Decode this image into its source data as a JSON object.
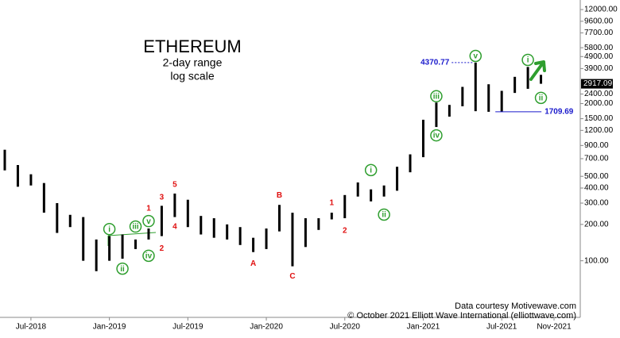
{
  "chart_data": {
    "type": "range-bar",
    "title": "ETHEREUM",
    "subtitle": "2-day range",
    "scale_note": "log scale",
    "log_scale": true,
    "color": "#000000",
    "x": [
      "May-2018",
      "Jun-2018",
      "Jul-2018",
      "Aug-2018",
      "Sep-2018",
      "Oct-2018",
      "Nov-2018",
      "Dec-2018",
      "Jan-2019",
      "Feb-2019",
      "Mar-2019",
      "Apr-2019",
      "May-2019",
      "Jun-2019",
      "Jul-2019",
      "Aug-2019",
      "Sep-2019",
      "Oct-2019",
      "Nov-2019",
      "Dec-2019",
      "Jan-2020",
      "Feb-2020",
      "Mar-2020",
      "Apr-2020",
      "May-2020",
      "Jun-2020",
      "Jul-2020",
      "Aug-2020",
      "Sep-2020",
      "Oct-2020",
      "Nov-2020",
      "Dec-2020",
      "Jan-2021",
      "Feb-2021",
      "Mar-2021",
      "Apr-2021",
      "May-2021",
      "Jun-2021",
      "Jul-2021",
      "Aug-2021",
      "Sep-2021",
      "Oct-2021"
    ],
    "high": [
      830,
      620,
      520,
      440,
      300,
      240,
      230,
      150,
      160,
      165,
      150,
      185,
      285,
      360,
      320,
      235,
      225,
      200,
      190,
      155,
      185,
      290,
      250,
      225,
      225,
      250,
      350,
      445,
      390,
      420,
      600,
      760,
      1470,
      2040,
      1950,
      2750,
      4370.77,
      2890,
      2550,
      3330,
      4020,
      3460
    ],
    "low": [
      560,
      410,
      420,
      250,
      170,
      190,
      100,
      82,
      100,
      104,
      125,
      150,
      160,
      230,
      190,
      165,
      155,
      150,
      135,
      118,
      125,
      175,
      90,
      130,
      180,
      220,
      225,
      340,
      310,
      340,
      380,
      540,
      720,
      1280,
      1560,
      1900,
      1730,
      1710,
      1709.69,
      2450,
      2650,
      2917.09
    ],
    "ylim": [
      34,
      14400
    ],
    "yticks": [
      {
        "value": 100,
        "label": "100.00"
      },
      {
        "value": 200,
        "label": "200.00"
      },
      {
        "value": 300,
        "label": "300.00"
      },
      {
        "value": 400,
        "label": "400.00"
      },
      {
        "value": 500,
        "label": "500.00"
      },
      {
        "value": 700,
        "label": "700.00"
      },
      {
        "value": 900,
        "label": "900.00"
      },
      {
        "value": 1200,
        "label": "1200.00"
      },
      {
        "value": 1500,
        "label": "1500.00"
      },
      {
        "value": 2000,
        "label": "2000.00"
      },
      {
        "value": 2400,
        "label": "2400.00"
      },
      {
        "value": 3900,
        "label": "3900.00"
      },
      {
        "value": 4900,
        "label": "4900.00"
      },
      {
        "value": 5800,
        "label": "5800.00"
      },
      {
        "value": 7700,
        "label": "7700.00"
      },
      {
        "value": 9600,
        "label": "9600.00"
      },
      {
        "value": 12000,
        "label": "12000.00"
      }
    ],
    "xticks": [
      "Jul-2018",
      "Jan-2019",
      "Jul-2019",
      "Jan-2020",
      "Jul-2020",
      "Jan-2021",
      "Jul-2021",
      "Nov-2021"
    ],
    "last_price": 2917.09,
    "price_labels": [
      {
        "x": "May-2021",
        "value": 4370.77,
        "color": "#1a1acc"
      },
      {
        "x": "Jul-2021",
        "value": 1709.69,
        "color": "#1a1acc"
      }
    ],
    "annotations": [
      {
        "text": "i",
        "x": "Jan-2019",
        "y": 183,
        "color": "#2e9e2e",
        "circled": true
      },
      {
        "text": "ii",
        "x": "Feb-2019",
        "y": 86,
        "color": "#2e9e2e",
        "circled": true
      },
      {
        "text": "iii",
        "x": "Mar-2019",
        "y": 192,
        "color": "#2e9e2e",
        "circled": true
      },
      {
        "text": "iv",
        "x": "Apr-2019",
        "y": 110,
        "color": "#2e9e2e",
        "circled": true
      },
      {
        "text": "v",
        "x": "Apr-2019",
        "y": 213,
        "color": "#2e9e2e",
        "circled": true
      },
      {
        "text": "1",
        "x": "Apr-2019",
        "y": 272,
        "color": "#e01010",
        "circled": false
      },
      {
        "text": "2",
        "x": "May-2019",
        "y": 127,
        "color": "#e01010",
        "circled": false
      },
      {
        "text": "3",
        "x": "May-2019",
        "y": 336,
        "color": "#e01010",
        "circled": false
      },
      {
        "text": "4",
        "x": "Jun-2019",
        "y": 192,
        "color": "#e01010",
        "circled": false
      },
      {
        "text": "5",
        "x": "Jun-2019",
        "y": 428,
        "color": "#e01010",
        "circled": false
      },
      {
        "text": "A",
        "x": "Dec-2019",
        "y": 95,
        "color": "#e01010",
        "circled": false
      },
      {
        "text": "B",
        "x": "Feb-2020",
        "y": 351,
        "color": "#e01010",
        "circled": false
      },
      {
        "text": "C",
        "x": "Mar-2020",
        "y": 75,
        "color": "#e01010",
        "circled": false
      },
      {
        "text": "1",
        "x": "Jun-2020",
        "y": 302,
        "color": "#e01010",
        "circled": false
      },
      {
        "text": "2",
        "x": "Jul-2020",
        "y": 178,
        "color": "#e01010",
        "circled": false
      },
      {
        "text": "i",
        "x": "Sep-2020",
        "y": 563,
        "color": "#2e9e2e",
        "circled": true
      },
      {
        "text": "ii",
        "x": "Oct-2020",
        "y": 241,
        "color": "#2e9e2e",
        "circled": true
      },
      {
        "text": "iii",
        "x": "Feb-2021",
        "y": 2300,
        "color": "#2e9e2e",
        "circled": true
      },
      {
        "text": "iv",
        "x": "Feb-2021",
        "y": 1092,
        "color": "#2e9e2e",
        "circled": true
      },
      {
        "text": "v",
        "x": "May-2021",
        "y": 4960,
        "color": "#2e9e2e",
        "circled": true
      },
      {
        "text": "i",
        "x": "Sep-2021",
        "y": 4600,
        "color": "#2e9e2e",
        "circled": true
      },
      {
        "text": "ii",
        "x": "Oct-2021",
        "y": 2230,
        "color": "#2e9e2e",
        "circled": true
      }
    ],
    "credits": [
      "Data courtesy Motivewave.com",
      "© October 2021 Elliott Wave International (elliottwave.com)"
    ]
  }
}
